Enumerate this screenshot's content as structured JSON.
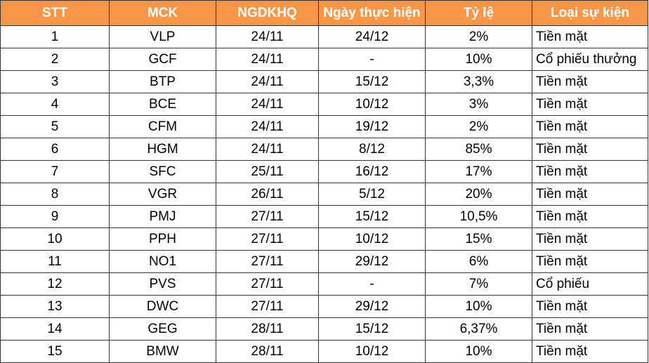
{
  "table": {
    "header": [
      "STT",
      "MCK",
      "NGDKHQ",
      "Ngày thực hiện",
      "Tỷ lệ",
      "Loại sự kiện"
    ],
    "rows": [
      [
        "1",
        "VLP",
        "24/11",
        "24/12",
        "2%",
        "Tiền mặt"
      ],
      [
        "2",
        "GCF",
        "24/11",
        "-",
        "10%",
        "Cổ phiếu thưởng"
      ],
      [
        "3",
        "BTP",
        "24/11",
        "15/12",
        "3,3%",
        "Tiền mặt"
      ],
      [
        "4",
        "BCE",
        "24/11",
        "10/12",
        "3%",
        "Tiền mặt"
      ],
      [
        "5",
        "CFM",
        "24/11",
        "19/12",
        "2%",
        "Tiền mặt"
      ],
      [
        "6",
        "HGM",
        "24/11",
        "8/12",
        "85%",
        "Tiền mặt"
      ],
      [
        "7",
        "SFC",
        "25/11",
        "16/12",
        "17%",
        "Tiền mặt"
      ],
      [
        "8",
        "VGR",
        "26/11",
        "5/12",
        "20%",
        "Tiền mặt"
      ],
      [
        "9",
        "PMJ",
        "27/11",
        "15/12",
        "10,5%",
        "Tiền mặt"
      ],
      [
        "10",
        "PPH",
        "27/11",
        "10/12",
        "15%",
        "Tiền mặt"
      ],
      [
        "11",
        "NO1",
        "27/11",
        "29/12",
        "6%",
        "Tiền mặt"
      ],
      [
        "12",
        "PVS",
        "27/11",
        "-",
        "7%",
        "Cổ phiếu"
      ],
      [
        "13",
        "DWC",
        "27/11",
        "29/12",
        "10%",
        "Tiền mặt"
      ],
      [
        "14",
        "GEG",
        "28/11",
        "15/12",
        "6,37%",
        "Tiền mặt"
      ],
      [
        "15",
        "BMW",
        "28/11",
        "10/12",
        "10%",
        "Tiền mặt"
      ]
    ]
  }
}
